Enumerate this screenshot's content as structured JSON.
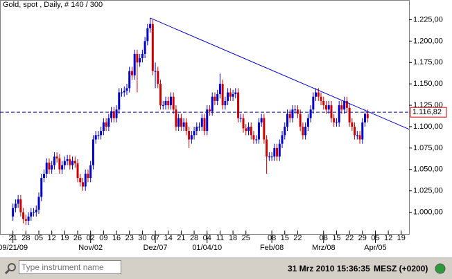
{
  "chart_data": {
    "type": "candlestick",
    "title": "Gold, spot , Daily, # 140 / 300",
    "xlim": [
      -5,
      153
    ],
    "xticks": [
      {
        "value": 0,
        "label": "21"
      },
      {
        "value": 5,
        "label": "28"
      },
      {
        "value": 10,
        "label": "05"
      },
      {
        "value": 15,
        "label": "12"
      },
      {
        "value": 20,
        "label": "19"
      },
      {
        "value": 25,
        "label": "26"
      },
      {
        "value": 30,
        "label": "02"
      },
      {
        "value": 35,
        "label": "09"
      },
      {
        "value": 40,
        "label": "16"
      },
      {
        "value": 45,
        "label": "23"
      },
      {
        "value": 50,
        "label": "30"
      },
      {
        "value": 55,
        "label": "07"
      },
      {
        "value": 60,
        "label": "14"
      },
      {
        "value": 65,
        "label": "21"
      },
      {
        "value": 70,
        "label": "28"
      },
      {
        "value": 75,
        "label": "04"
      },
      {
        "value": 80,
        "label": "11"
      },
      {
        "value": 85,
        "label": "18"
      },
      {
        "value": 90,
        "label": "25"
      },
      {
        "value": 100,
        "label": "08"
      },
      {
        "value": 105,
        "label": "15"
      },
      {
        "value": 110,
        "label": "22"
      },
      {
        "value": 120,
        "label": "08"
      },
      {
        "value": 125,
        "label": "15"
      },
      {
        "value": 130,
        "label": "22"
      },
      {
        "value": 135,
        "label": "29"
      },
      {
        "value": 140,
        "label": "05"
      },
      {
        "value": 145,
        "label": "12"
      },
      {
        "value": 150,
        "label": "19"
      }
    ],
    "xticks_major": [
      {
        "value": 0,
        "label": "09/21/09"
      },
      {
        "value": 30,
        "label": "Nov/02"
      },
      {
        "value": 55,
        "label": "Dez/07"
      },
      {
        "value": 75,
        "label": "01/04/10"
      },
      {
        "value": 100,
        "label": "Feb/08"
      },
      {
        "value": 120,
        "label": "Mrz/08"
      },
      {
        "value": 140,
        "label": "Apr/05"
      }
    ],
    "ylim": [
      987.5,
      1237.5
    ],
    "yticks": [
      {
        "value": 1000,
        "label": "1.000,00"
      },
      {
        "value": 1025,
        "label": "1.025,00"
      },
      {
        "value": 1050,
        "label": "1.050,00"
      },
      {
        "value": 1075,
        "label": "1.075,00"
      },
      {
        "value": 1100,
        "label": "1.100,00"
      },
      {
        "value": 1125,
        "label": "1.125,00"
      },
      {
        "value": 1150,
        "label": "1.150,00"
      },
      {
        "value": 1175,
        "label": "1.175,00"
      },
      {
        "value": 1200,
        "label": "1.200,00"
      },
      {
        "value": 1225,
        "label": "1.225,00"
      }
    ],
    "up_color": "#0000cc",
    "down_color": "#cc0000",
    "open": [
      995,
      1005,
      1010,
      1015,
      1000,
      992,
      990,
      995,
      1000,
      1000,
      1003,
      1018,
      1040,
      1045,
      1058,
      1050,
      1055,
      1065,
      1063,
      1050,
      1055,
      1060,
      1062,
      1055,
      1060,
      1057,
      1040,
      1035,
      1030,
      1045,
      1040,
      1055,
      1085,
      1090,
      1090,
      1095,
      1105,
      1100,
      1110,
      1118,
      1110,
      1120,
      1140,
      1140,
      1142,
      1145,
      1165,
      1160,
      1185,
      1175,
      1180,
      1185,
      1200,
      1215,
      1220,
      1165,
      1165,
      1150,
      1125,
      1125,
      1130,
      1125,
      1135,
      1120,
      1100,
      1110,
      1100,
      1105,
      1095,
      1085,
      1090,
      1095,
      1100,
      1100,
      1110,
      1095,
      1120,
      1118,
      1135,
      1130,
      1138,
      1150,
      1125,
      1130,
      1140,
      1135,
      1138,
      1140,
      1110,
      1110,
      1098,
      1095,
      1100,
      1090,
      1085,
      1085,
      1105,
      1110,
      1085,
      1065,
      1065,
      1065,
      1075,
      1065,
      1080,
      1090,
      1100,
      1115,
      1110,
      1120,
      1120,
      1115,
      1100,
      1090,
      1100,
      1110,
      1120,
      1135,
      1140,
      1135,
      1130,
      1125,
      1120,
      1125,
      1110,
      1105,
      1105,
      1125,
      1120,
      1130,
      1122,
      1105,
      1100,
      1090,
      1090,
      1085,
      1105,
      1115
    ],
    "high": [
      1010,
      1015,
      1020,
      1020,
      1005,
      997,
      1000,
      1005,
      1005,
      1008,
      1023,
      1045,
      1050,
      1063,
      1063,
      1060,
      1070,
      1070,
      1068,
      1060,
      1065,
      1067,
      1067,
      1065,
      1065,
      1062,
      1045,
      1040,
      1050,
      1050,
      1060,
      1090,
      1095,
      1095,
      1100,
      1110,
      1110,
      1115,
      1123,
      1123,
      1125,
      1145,
      1145,
      1147,
      1150,
      1170,
      1170,
      1190,
      1190,
      1185,
      1190,
      1205,
      1220,
      1227,
      1225,
      1175,
      1170,
      1155,
      1130,
      1135,
      1135,
      1140,
      1140,
      1125,
      1115,
      1115,
      1110,
      1110,
      1100,
      1095,
      1100,
      1105,
      1105,
      1115,
      1115,
      1125,
      1125,
      1140,
      1140,
      1143,
      1162,
      1155,
      1135,
      1145,
      1145,
      1143,
      1145,
      1145,
      1115,
      1115,
      1103,
      1105,
      1105,
      1095,
      1090,
      1110,
      1115,
      1115,
      1090,
      1070,
      1070,
      1080,
      1080,
      1085,
      1095,
      1105,
      1120,
      1120,
      1125,
      1125,
      1125,
      1120,
      1105,
      1105,
      1115,
      1125,
      1140,
      1145,
      1145,
      1140,
      1135,
      1130,
      1130,
      1130,
      1115,
      1110,
      1130,
      1130,
      1135,
      1135,
      1127,
      1110,
      1105,
      1095,
      1095,
      1110,
      1120,
      1120
    ],
    "low": [
      990,
      1000,
      1005,
      995,
      987,
      985,
      985,
      990,
      995,
      995,
      998,
      1013,
      1035,
      1040,
      1045,
      1045,
      1050,
      1058,
      1045,
      1045,
      1050,
      1055,
      1050,
      1050,
      1052,
      1035,
      1030,
      1025,
      1025,
      1035,
      1035,
      1050,
      1080,
      1085,
      1085,
      1090,
      1095,
      1095,
      1105,
      1105,
      1105,
      1115,
      1135,
      1135,
      1137,
      1140,
      1155,
      1155,
      1140,
      1170,
      1175,
      1180,
      1195,
      1210,
      1160,
      1145,
      1145,
      1120,
      1120,
      1120,
      1120,
      1120,
      1115,
      1095,
      1095,
      1095,
      1095,
      1090,
      1075,
      1080,
      1085,
      1090,
      1095,
      1095,
      1090,
      1090,
      1113,
      1113,
      1125,
      1125,
      1133,
      1120,
      1120,
      1125,
      1130,
      1130,
      1133,
      1105,
      1105,
      1093,
      1090,
      1090,
      1085,
      1080,
      1080,
      1080,
      1100,
      1080,
      1045,
      1060,
      1060,
      1060,
      1060,
      1060,
      1075,
      1085,
      1095,
      1105,
      1105,
      1115,
      1110,
      1095,
      1085,
      1085,
      1095,
      1105,
      1115,
      1130,
      1130,
      1125,
      1120,
      1115,
      1115,
      1105,
      1100,
      1100,
      1100,
      1115,
      1115,
      1117,
      1100,
      1095,
      1085,
      1085,
      1080,
      1080,
      1100,
      1105
    ],
    "close": [
      1005,
      1010,
      1015,
      1000,
      992,
      990,
      995,
      1000,
      1000,
      1003,
      1018,
      1040,
      1045,
      1058,
      1050,
      1055,
      1065,
      1063,
      1050,
      1055,
      1060,
      1062,
      1055,
      1060,
      1057,
      1040,
      1035,
      1030,
      1045,
      1040,
      1055,
      1085,
      1090,
      1090,
      1095,
      1105,
      1100,
      1110,
      1118,
      1110,
      1120,
      1140,
      1140,
      1142,
      1145,
      1165,
      1160,
      1185,
      1175,
      1180,
      1185,
      1200,
      1215,
      1220,
      1165,
      1165,
      1150,
      1125,
      1125,
      1130,
      1125,
      1135,
      1120,
      1100,
      1110,
      1100,
      1105,
      1095,
      1085,
      1090,
      1095,
      1100,
      1100,
      1110,
      1095,
      1120,
      1118,
      1135,
      1130,
      1138,
      1150,
      1125,
      1130,
      1140,
      1135,
      1138,
      1140,
      1110,
      1110,
      1098,
      1095,
      1100,
      1090,
      1085,
      1085,
      1105,
      1110,
      1085,
      1065,
      1065,
      1065,
      1075,
      1065,
      1080,
      1090,
      1100,
      1115,
      1110,
      1120,
      1120,
      1115,
      1100,
      1090,
      1100,
      1110,
      1120,
      1135,
      1140,
      1135,
      1130,
      1125,
      1120,
      1125,
      1110,
      1105,
      1105,
      1125,
      1120,
      1130,
      1122,
      1105,
      1100,
      1090,
      1090,
      1085,
      1105,
      1115,
      1110
    ],
    "trendline": {
      "x": [
        53,
        153
      ],
      "y": [
        1227,
        1097
      ],
      "color": "#0000cc"
    },
    "price_line": {
      "value": 1116.82,
      "label": "1.116,82",
      "color": "#0000aa"
    }
  },
  "status_bar": {
    "search_placeholder": "Type instrument name",
    "datetime": "31 Mrz 2010 15:36:35",
    "timezone": "MESZ (+0200)"
  }
}
